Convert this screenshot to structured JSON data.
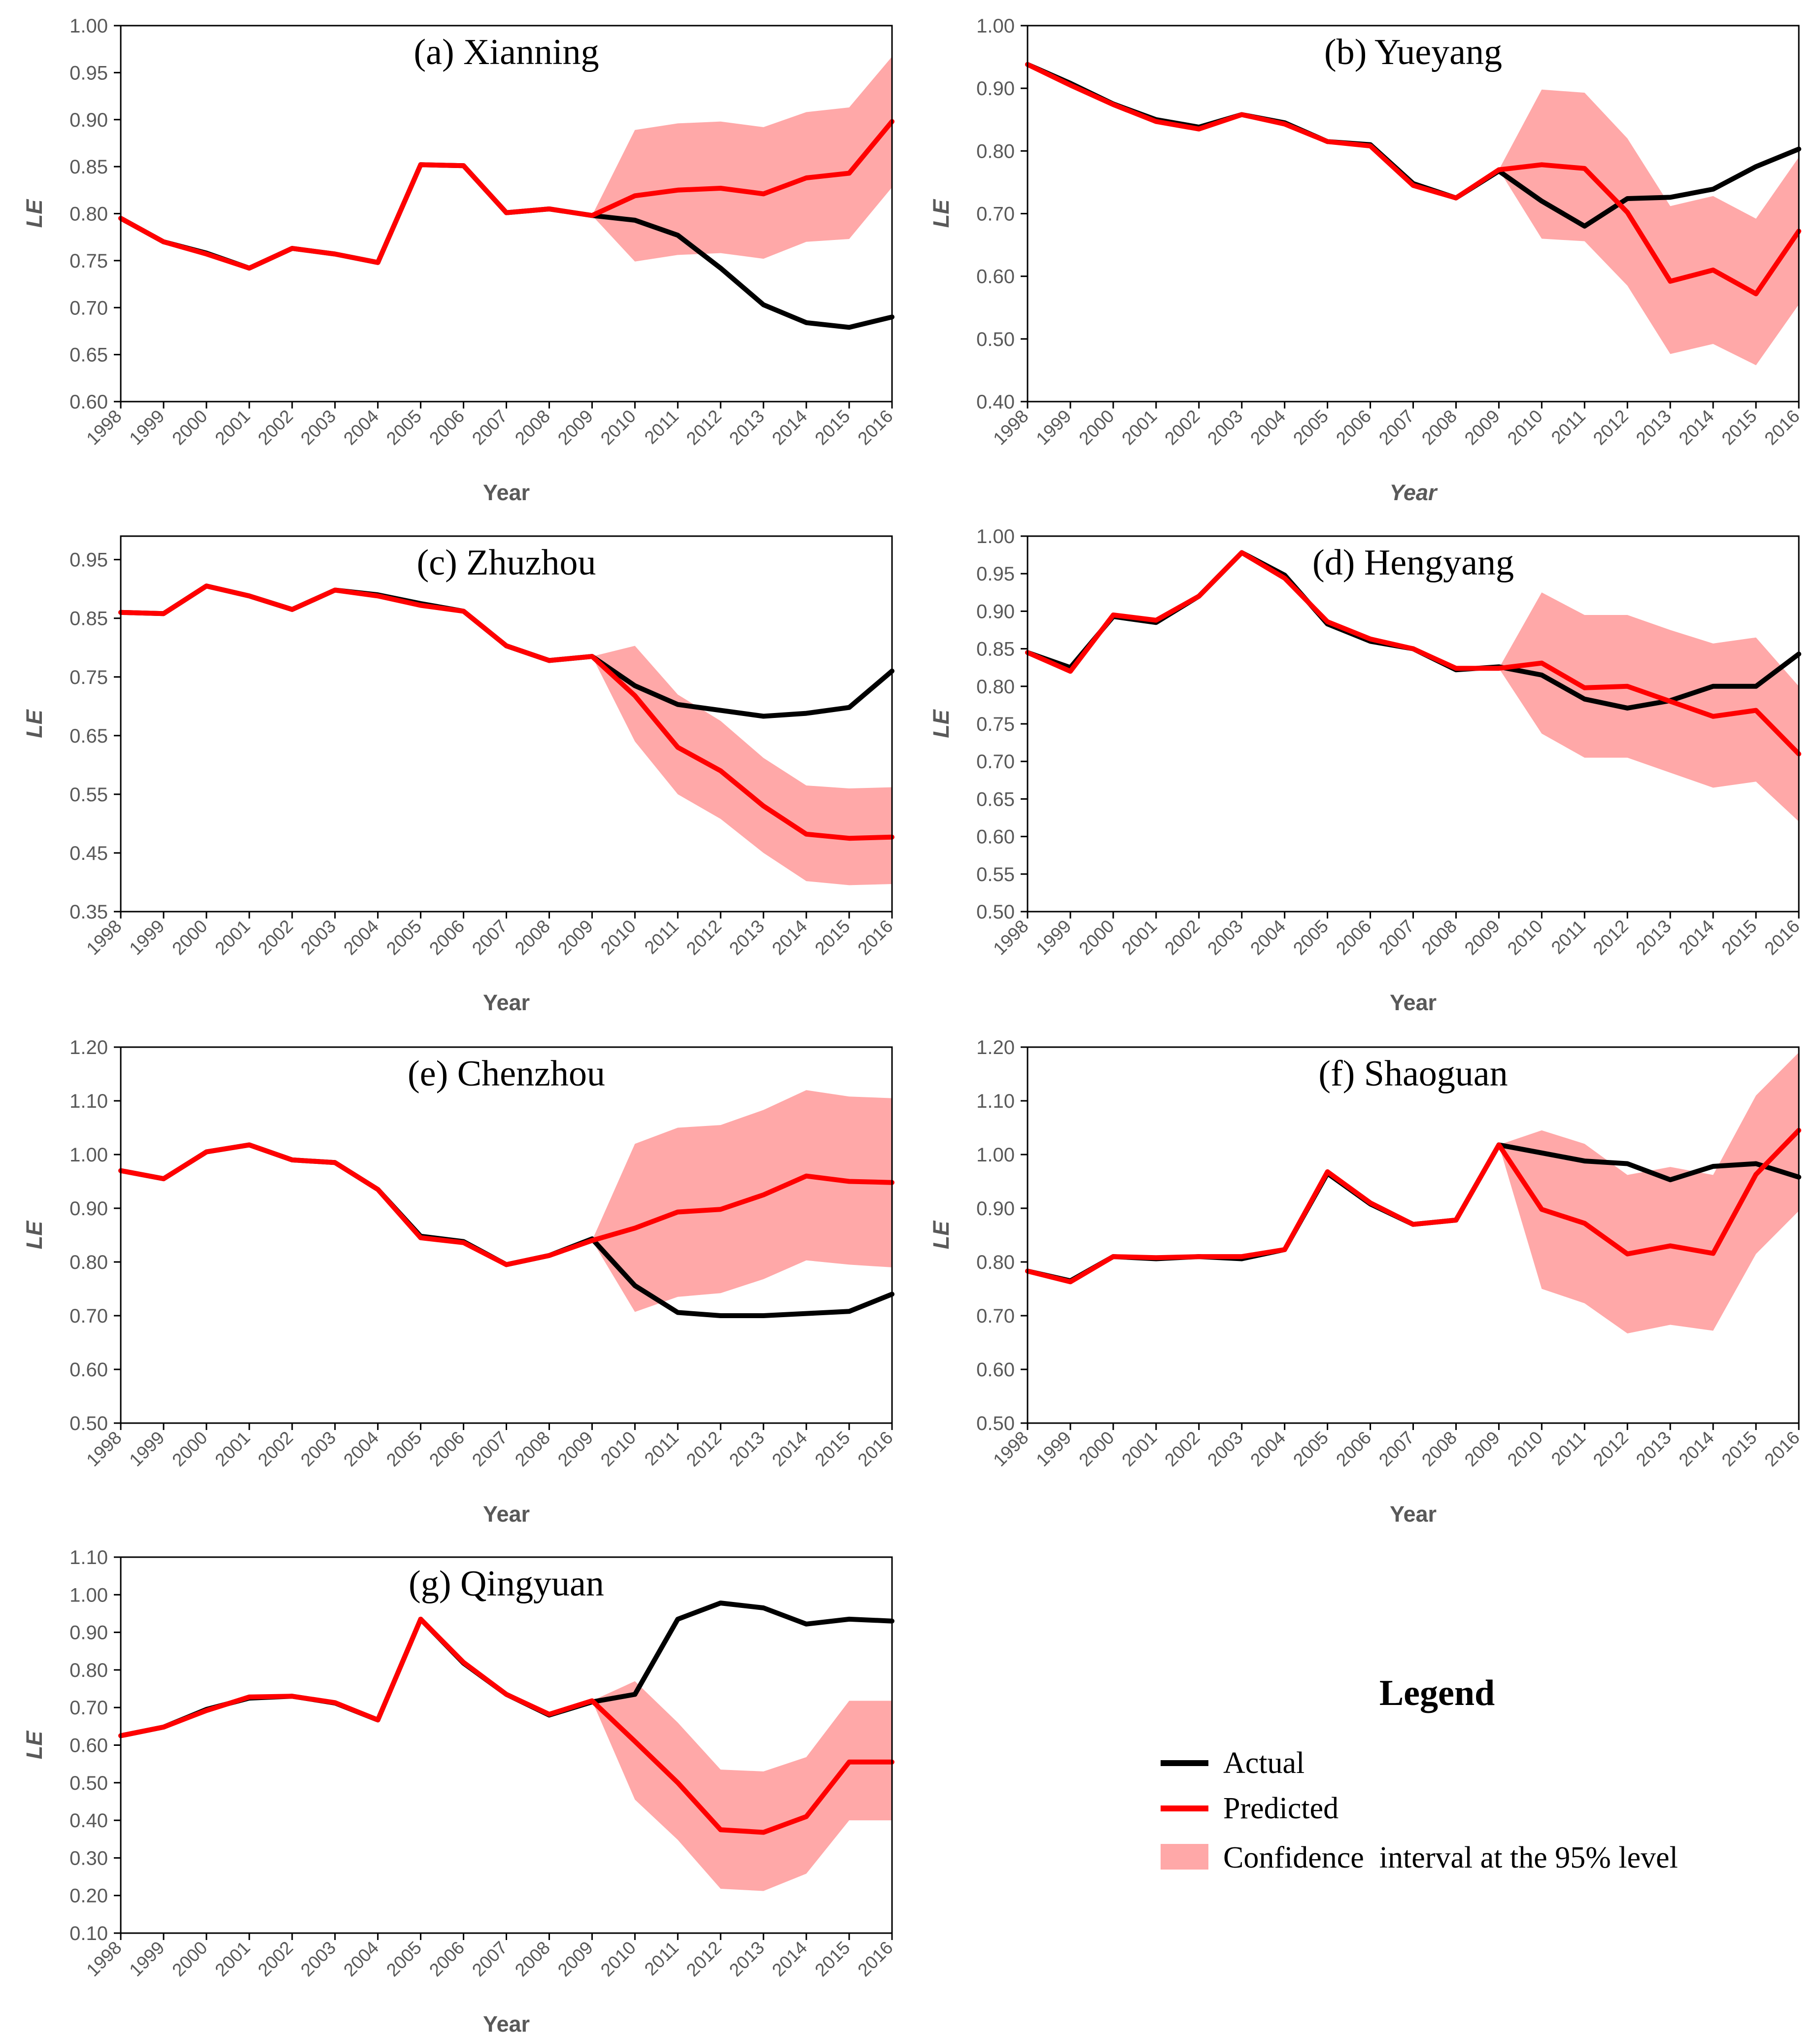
{
  "colors": {
    "actual": "#000000",
    "predicted": "#ff0000",
    "ci": "#ffa8a8"
  },
  "legend": {
    "title": "Legend",
    "items": [
      {
        "key": "actual",
        "label": "Actual"
      },
      {
        "key": "predicted",
        "label": "Predicted"
      },
      {
        "key": "ci",
        "label": "Confidence  interval at the 95% level"
      }
    ]
  },
  "chart_data": [
    {
      "type": "line",
      "title": "(a) Xianning",
      "xlabel": "Year",
      "ylabel": "LE",
      "x": [
        "1998",
        "1999",
        "2000",
        "2001",
        "2002",
        "2003",
        "2004",
        "2005",
        "2006",
        "2007",
        "2008",
        "2009",
        "2010",
        "2011",
        "2012",
        "2013",
        "2014",
        "2015",
        "2016"
      ],
      "ylim": [
        0.6,
        1.0
      ],
      "yticks": [
        "0.60",
        "0.65",
        "0.70",
        "0.75",
        "0.80",
        "0.85",
        "0.90",
        "0.95",
        "1.00"
      ],
      "series": [
        {
          "name": "Actual",
          "values": [
            0.795,
            0.77,
            0.758,
            0.742,
            0.763,
            0.757,
            0.748,
            0.852,
            0.851,
            0.801,
            0.805,
            0.798,
            0.793,
            0.777,
            0.742,
            0.703,
            0.684,
            0.679,
            0.69
          ]
        },
        {
          "name": "Predicted",
          "values": [
            0.795,
            0.77,
            0.757,
            0.742,
            0.763,
            0.757,
            0.748,
            0.852,
            0.851,
            0.801,
            0.805,
            0.798,
            0.819,
            0.825,
            0.827,
            0.821,
            0.838,
            0.843,
            0.898
          ]
        }
      ],
      "ci": {
        "start_index": 11,
        "lower": [
          0.798,
          0.749,
          0.756,
          0.758,
          0.752,
          0.77,
          0.773,
          0.828
        ],
        "upper": [
          0.798,
          0.889,
          0.896,
          0.898,
          0.892,
          0.908,
          0.913,
          0.967
        ]
      }
    },
    {
      "type": "line",
      "title": "(b) Yueyang",
      "xlabel": "Year",
      "ylabel": "LE",
      "x": [
        "1998",
        "1999",
        "2000",
        "2001",
        "2002",
        "2003",
        "2004",
        "2005",
        "2006",
        "2007",
        "2008",
        "2009",
        "2010",
        "2011",
        "2012",
        "2013",
        "2014",
        "2015",
        "2016"
      ],
      "ylim": [
        0.4,
        1.0
      ],
      "yticks": [
        "0.40",
        "0.50",
        "0.60",
        "0.70",
        "0.80",
        "0.90",
        "1.00"
      ],
      "series": [
        {
          "name": "Actual",
          "values": [
            0.938,
            0.908,
            0.875,
            0.85,
            0.838,
            0.858,
            0.845,
            0.815,
            0.81,
            0.748,
            0.725,
            0.768,
            0.72,
            0.68,
            0.724,
            0.726,
            0.739,
            0.775,
            0.803
          ]
        },
        {
          "name": "Predicted",
          "values": [
            0.938,
            0.905,
            0.874,
            0.847,
            0.835,
            0.858,
            0.843,
            0.815,
            0.808,
            0.745,
            0.725,
            0.77,
            0.778,
            0.772,
            0.702,
            0.592,
            0.61,
            0.572,
            0.672
          ]
        }
      ],
      "ci": {
        "start_index": 11,
        "lower": [
          0.77,
          0.66,
          0.656,
          0.585,
          0.476,
          0.492,
          0.458,
          0.555
        ],
        "upper": [
          0.77,
          0.898,
          0.893,
          0.82,
          0.712,
          0.728,
          0.692,
          0.79
        ]
      }
    },
    {
      "type": "line",
      "title": "(c) Zhuzhou",
      "xlabel": "Year",
      "ylabel": "LE",
      "x": [
        "1998",
        "1999",
        "2000",
        "2001",
        "2002",
        "2003",
        "2004",
        "2005",
        "2006",
        "2007",
        "2008",
        "2009",
        "2010",
        "2011",
        "2012",
        "2013",
        "2014",
        "2015",
        "2016"
      ],
      "ylim": [
        0.35,
        0.99
      ],
      "yticks": [
        "0.35",
        "0.45",
        "0.55",
        "0.65",
        "0.75",
        "0.85",
        "0.95"
      ],
      "series": [
        {
          "name": "Actual",
          "values": [
            0.86,
            0.858,
            0.905,
            0.888,
            0.865,
            0.898,
            0.89,
            0.875,
            0.862,
            0.803,
            0.778,
            0.785,
            0.735,
            0.703,
            0.693,
            0.683,
            0.688,
            0.698,
            0.76
          ]
        },
        {
          "name": "Predicted",
          "values": [
            0.86,
            0.858,
            0.905,
            0.888,
            0.865,
            0.898,
            0.888,
            0.872,
            0.862,
            0.803,
            0.778,
            0.785,
            0.718,
            0.63,
            0.59,
            0.53,
            0.482,
            0.475,
            0.477
          ]
        }
      ],
      "ci": {
        "start_index": 11,
        "lower": [
          0.785,
          0.64,
          0.55,
          0.508,
          0.45,
          0.402,
          0.395,
          0.397
        ],
        "upper": [
          0.785,
          0.803,
          0.72,
          0.675,
          0.612,
          0.565,
          0.56,
          0.562
        ]
      }
    },
    {
      "type": "line",
      "title": "(d) Hengyang",
      "xlabel": "Year",
      "ylabel": "LE",
      "x": [
        "1998",
        "1999",
        "2000",
        "2001",
        "2002",
        "2003",
        "2004",
        "2005",
        "2006",
        "2007",
        "2008",
        "2009",
        "2010",
        "2011",
        "2012",
        "2013",
        "2014",
        "2015",
        "2016"
      ],
      "ylim": [
        0.5,
        1.0
      ],
      "yticks": [
        "0.50",
        "0.55",
        "0.60",
        "0.65",
        "0.70",
        "0.75",
        "0.80",
        "0.85",
        "0.90",
        "0.95",
        "1.00"
      ],
      "series": [
        {
          "name": "Actual",
          "values": [
            0.845,
            0.825,
            0.893,
            0.885,
            0.92,
            0.978,
            0.948,
            0.883,
            0.86,
            0.85,
            0.822,
            0.826,
            0.815,
            0.783,
            0.771,
            0.781,
            0.8,
            0.8,
            0.843
          ]
        },
        {
          "name": "Predicted",
          "values": [
            0.845,
            0.82,
            0.895,
            0.888,
            0.92,
            0.978,
            0.944,
            0.886,
            0.863,
            0.85,
            0.824,
            0.824,
            0.831,
            0.798,
            0.8,
            0.78,
            0.76,
            0.768,
            0.71
          ]
        }
      ],
      "ci": {
        "start_index": 11,
        "lower": [
          0.824,
          0.737,
          0.705,
          0.705,
          0.685,
          0.665,
          0.673,
          0.62
        ],
        "upper": [
          0.824,
          0.925,
          0.895,
          0.895,
          0.875,
          0.857,
          0.865,
          0.8
        ]
      }
    },
    {
      "type": "line",
      "title": "(e) Chenzhou",
      "xlabel": "Year",
      "ylabel": "LE",
      "x": [
        "1998",
        "1999",
        "2000",
        "2001",
        "2002",
        "2003",
        "2004",
        "2005",
        "2006",
        "2007",
        "2008",
        "2009",
        "2010",
        "2011",
        "2012",
        "2013",
        "2014",
        "2015",
        "2016"
      ],
      "ylim": [
        0.5,
        1.2
      ],
      "yticks": [
        "0.50",
        "0.60",
        "0.70",
        "0.80",
        "0.90",
        "1.00",
        "1.10",
        "1.20"
      ],
      "series": [
        {
          "name": "Actual",
          "values": [
            0.97,
            0.955,
            1.005,
            1.018,
            0.99,
            0.985,
            0.935,
            0.848,
            0.838,
            0.795,
            0.812,
            0.843,
            0.756,
            0.706,
            0.7,
            0.7,
            0.704,
            0.708,
            0.74
          ]
        },
        {
          "name": "Predicted",
          "values": [
            0.97,
            0.955,
            1.005,
            1.018,
            0.99,
            0.985,
            0.935,
            0.845,
            0.836,
            0.795,
            0.812,
            0.84,
            0.863,
            0.893,
            0.898,
            0.925,
            0.96,
            0.95,
            0.948
          ]
        }
      ],
      "ci": {
        "start_index": 11,
        "lower": [
          0.84,
          0.707,
          0.735,
          0.742,
          0.768,
          0.803,
          0.795,
          0.79
        ],
        "upper": [
          0.84,
          1.02,
          1.05,
          1.055,
          1.083,
          1.12,
          1.108,
          1.105
        ]
      }
    },
    {
      "type": "line",
      "title": "(f) Shaoguan",
      "xlabel": "Year",
      "ylabel": "LE",
      "x": [
        "1998",
        "1999",
        "2000",
        "2001",
        "2002",
        "2003",
        "2004",
        "2005",
        "2006",
        "2007",
        "2008",
        "2009",
        "2010",
        "2011",
        "2012",
        "2013",
        "2014",
        "2015",
        "2016"
      ],
      "ylim": [
        0.5,
        1.2
      ],
      "yticks": [
        "0.50",
        "0.60",
        "0.70",
        "0.80",
        "0.90",
        "1.00",
        "1.10",
        "1.20"
      ],
      "series": [
        {
          "name": "Actual",
          "values": [
            0.783,
            0.765,
            0.81,
            0.806,
            0.81,
            0.806,
            0.823,
            0.965,
            0.908,
            0.87,
            0.878,
            1.018,
            1.003,
            0.988,
            0.983,
            0.953,
            0.978,
            0.983,
            0.958
          ]
        },
        {
          "name": "Predicted",
          "values": [
            0.783,
            0.763,
            0.81,
            0.808,
            0.81,
            0.81,
            0.823,
            0.968,
            0.91,
            0.87,
            0.878,
            1.018,
            0.898,
            0.872,
            0.815,
            0.83,
            0.816,
            0.963,
            1.045
          ]
        }
      ],
      "ci": {
        "start_index": 11,
        "lower": [
          1.018,
          0.75,
          0.723,
          0.667,
          0.683,
          0.672,
          0.815,
          0.895
        ],
        "upper": [
          1.018,
          1.045,
          1.02,
          0.962,
          0.977,
          0.962,
          1.11,
          1.19
        ]
      }
    },
    {
      "type": "line",
      "title": "(g) Qingyuan",
      "xlabel": "Year",
      "ylabel": "LE",
      "x": [
        "1998",
        "1999",
        "2000",
        "2001",
        "2002",
        "2003",
        "2004",
        "2005",
        "2006",
        "2007",
        "2008",
        "2009",
        "2010",
        "2011",
        "2012",
        "2013",
        "2014",
        "2015",
        "2016"
      ],
      "ylim": [
        0.1,
        1.1
      ],
      "yticks": [
        "0.10",
        "0.20",
        "0.30",
        "0.40",
        "0.50",
        "0.60",
        "0.70",
        "0.80",
        "0.90",
        "1.00",
        "1.10"
      ],
      "series": [
        {
          "name": "Actual",
          "values": [
            0.625,
            0.648,
            0.695,
            0.725,
            0.73,
            0.712,
            0.667,
            0.935,
            0.818,
            0.735,
            0.68,
            0.715,
            0.735,
            0.935,
            0.978,
            0.965,
            0.922,
            0.935,
            0.93
          ]
        },
        {
          "name": "Predicted",
          "values": [
            0.625,
            0.648,
            0.692,
            0.728,
            0.73,
            0.713,
            0.667,
            0.935,
            0.82,
            0.735,
            0.682,
            0.718,
            0.61,
            0.5,
            0.375,
            0.368,
            0.41,
            0.555,
            0.555
          ]
        }
      ],
      "ci": {
        "start_index": 11,
        "lower": [
          0.718,
          0.455,
          0.348,
          0.218,
          0.212,
          0.258,
          0.4,
          0.4
        ],
        "upper": [
          0.718,
          0.77,
          0.66,
          0.535,
          0.53,
          0.568,
          0.718,
          0.718
        ]
      }
    }
  ]
}
